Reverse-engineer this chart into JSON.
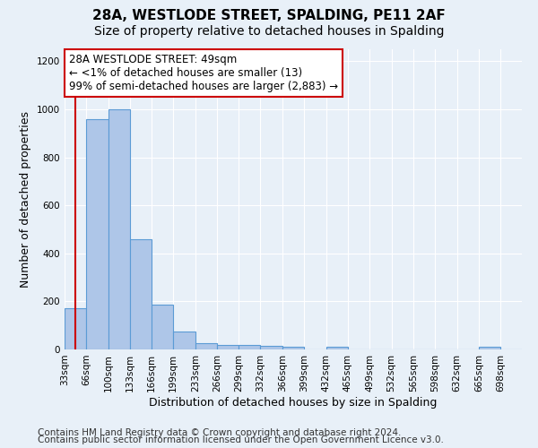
{
  "title": "28A, WESTLODE STREET, SPALDING, PE11 2AF",
  "subtitle": "Size of property relative to detached houses in Spalding",
  "xlabel": "Distribution of detached houses by size in Spalding",
  "ylabel": "Number of detached properties",
  "bin_labels": [
    "33sqm",
    "66sqm",
    "100sqm",
    "133sqm",
    "166sqm",
    "199sqm",
    "233sqm",
    "266sqm",
    "299sqm",
    "332sqm",
    "366sqm",
    "399sqm",
    "432sqm",
    "465sqm",
    "499sqm",
    "532sqm",
    "565sqm",
    "598sqm",
    "632sqm",
    "665sqm",
    "698sqm"
  ],
  "bin_edges": [
    33,
    66,
    100,
    133,
    166,
    199,
    233,
    266,
    299,
    332,
    366,
    399,
    432,
    465,
    499,
    532,
    565,
    598,
    632,
    665,
    698,
    731
  ],
  "bar_heights": [
    170,
    960,
    1000,
    460,
    185,
    75,
    25,
    20,
    18,
    15,
    12,
    0,
    10,
    0,
    0,
    0,
    0,
    0,
    0,
    10,
    0
  ],
  "bar_color": "#aec6e8",
  "bar_edge_color": "#5b9bd5",
  "annotation_line1": "28A WESTLODE STREET: 49sqm",
  "annotation_line2": "← <1% of detached houses are smaller (13)",
  "annotation_line3": "99% of semi-detached houses are larger (2,883) →",
  "annotation_box_color": "#ffffff",
  "annotation_box_edge_color": "#cc0000",
  "red_line_x": 49,
  "ylim": [
    0,
    1250
  ],
  "yticks": [
    0,
    200,
    400,
    600,
    800,
    1000,
    1200
  ],
  "footer_line1": "Contains HM Land Registry data © Crown copyright and database right 2024.",
  "footer_line2": "Contains public sector information licensed under the Open Government Licence v3.0.",
  "bg_color": "#e8f0f8",
  "plot_bg_color": "#e8f0f8",
  "title_fontsize": 11,
  "subtitle_fontsize": 10,
  "axis_label_fontsize": 9,
  "tick_fontsize": 7.5,
  "annot_fontsize": 8.5,
  "footer_fontsize": 7.5
}
